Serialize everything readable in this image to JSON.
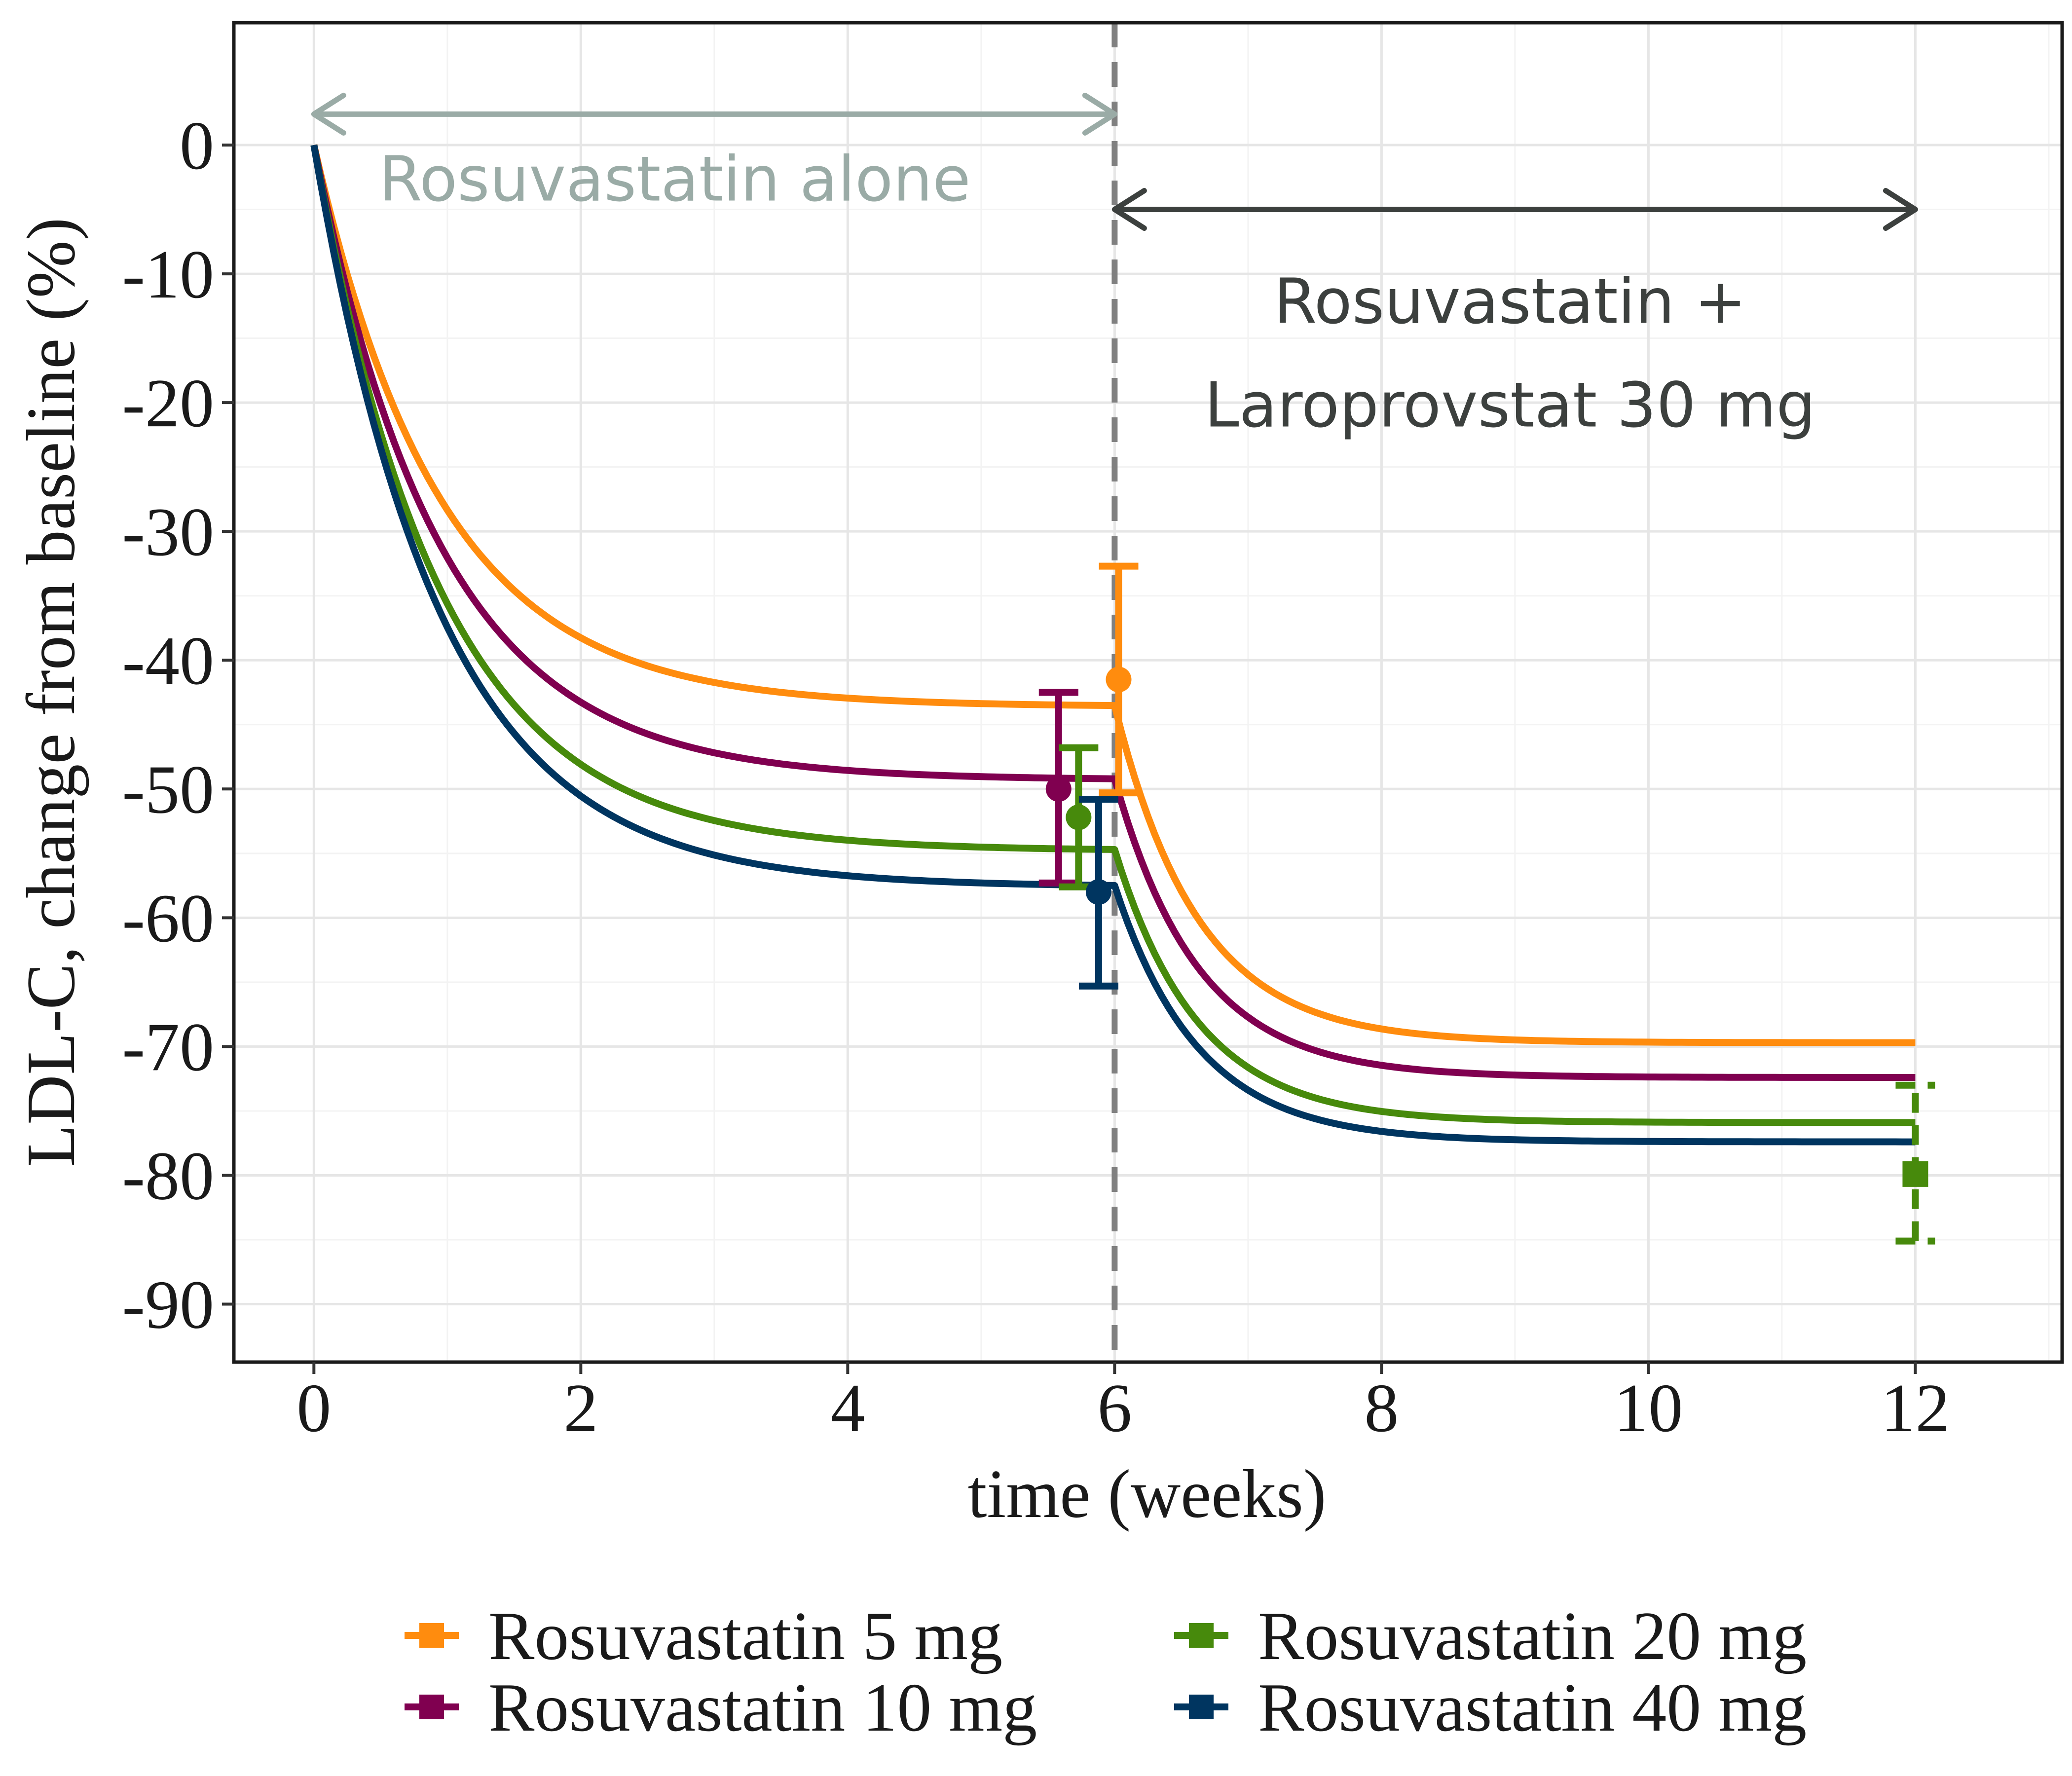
{
  "chart_data": {
    "type": "line",
    "xlabel": "time (weeks)",
    "ylabel": "LDL-C, change from baseline (%)",
    "xlim": [
      -0.6,
      13.1
    ],
    "ylim": [
      -94.5,
      9.5
    ],
    "xticks": [
      0,
      2,
      4,
      6,
      8,
      10,
      12
    ],
    "yticks": [
      0,
      -10,
      -20,
      -30,
      -40,
      -50,
      -60,
      -70,
      -80,
      -90
    ],
    "grid": true,
    "legend": "bottom",
    "vline": {
      "x": 6,
      "color": "#808080",
      "style": "dashed"
    },
    "annotations": [
      {
        "text": "Rosuvastatin alone",
        "color": "#9aaba6",
        "arrow_from": 0,
        "arrow_to": 6,
        "arrow_y": 2.4
      },
      {
        "lines": [
          "Rosuvastatin +",
          "Laroprovstat 30 mg"
        ],
        "color": "#3c403e",
        "arrow_from": 6,
        "arrow_to": 12,
        "arrow_y": -5
      }
    ],
    "series": [
      {
        "name": "Rosuvastatin 5 mg",
        "color": "#ff8c0e",
        "plateau1": -43.6,
        "plateau2": -69.7,
        "points": [
          {
            "x": 6.03,
            "y": -41.5,
            "low": -50.3,
            "high": -32.7,
            "marker": "circle"
          }
        ]
      },
      {
        "name": "Rosuvastatin 10 mg",
        "color": "#800050",
        "plateau1": -49.3,
        "plateau2": -72.4,
        "points": [
          {
            "x": 5.58,
            "y": -50.0,
            "low": -57.3,
            "high": -42.5,
            "marker": "circle"
          }
        ]
      },
      {
        "name": "Rosuvastatin 20 mg",
        "color": "#478a0c",
        "plateau1": -54.8,
        "plateau2": -75.9,
        "points": [
          {
            "x": 5.73,
            "y": -52.2,
            "low": -57.6,
            "high": -46.8,
            "marker": "circle"
          },
          {
            "x": 12,
            "y": -79.9,
            "low": -85.1,
            "high": -73.0,
            "marker": "square",
            "dashed": true
          }
        ]
      },
      {
        "name": "Rosuvastatin 40 mg",
        "color": "#003560",
        "plateau1": -57.6,
        "plateau2": -77.4,
        "points": [
          {
            "x": 5.88,
            "y": -58.0,
            "low": -65.3,
            "high": -50.8,
            "marker": "circle"
          }
        ]
      }
    ]
  }
}
